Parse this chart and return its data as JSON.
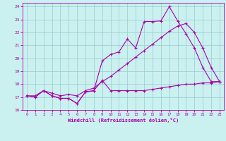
{
  "xlabel": "Windchill (Refroidissement éolien,°C)",
  "xlim": [
    -0.5,
    23.5
  ],
  "ylim": [
    16,
    24.3
  ],
  "yticks": [
    16,
    17,
    18,
    19,
    20,
    21,
    22,
    23,
    24
  ],
  "xticks": [
    0,
    1,
    2,
    3,
    4,
    5,
    6,
    7,
    8,
    9,
    10,
    11,
    12,
    13,
    14,
    15,
    16,
    17,
    18,
    19,
    20,
    21,
    22,
    23
  ],
  "bg_color": "#caf0f0",
  "grid_color": "#99cccc",
  "line_color": "#aa00aa",
  "series1_x": [
    0,
    1,
    2,
    3,
    4,
    5,
    6,
    7,
    8,
    9,
    10,
    11,
    12,
    13,
    14,
    15,
    16,
    17,
    18,
    19,
    20,
    21,
    22,
    23
  ],
  "series1_y": [
    17.1,
    17.0,
    17.5,
    17.1,
    16.9,
    16.9,
    16.5,
    17.4,
    17.5,
    18.3,
    17.5,
    17.5,
    17.5,
    17.5,
    17.5,
    17.6,
    17.7,
    17.8,
    17.9,
    18.0,
    18.0,
    18.1,
    18.1,
    18.2
  ],
  "series2_x": [
    0,
    1,
    2,
    3,
    4,
    5,
    6,
    7,
    8,
    9,
    10,
    11,
    12,
    13,
    14,
    15,
    16,
    17,
    18,
    19,
    20,
    21,
    22,
    23
  ],
  "series2_y": [
    17.1,
    17.0,
    17.5,
    17.1,
    16.9,
    16.9,
    16.5,
    17.4,
    17.5,
    19.8,
    20.3,
    20.5,
    21.5,
    20.8,
    22.85,
    22.85,
    22.9,
    24.0,
    22.9,
    21.9,
    20.8,
    19.3,
    18.2,
    18.2
  ],
  "series3_x": [
    0,
    1,
    2,
    3,
    4,
    5,
    6,
    7,
    8,
    9,
    10,
    11,
    12,
    13,
    14,
    15,
    16,
    17,
    18,
    19,
    20,
    21,
    22,
    23
  ],
  "series3_y": [
    17.1,
    17.1,
    17.5,
    17.3,
    17.1,
    17.2,
    17.1,
    17.5,
    17.7,
    18.2,
    18.6,
    19.1,
    19.6,
    20.1,
    20.6,
    21.1,
    21.6,
    22.1,
    22.5,
    22.7,
    22.0,
    20.8,
    19.3,
    18.2
  ]
}
